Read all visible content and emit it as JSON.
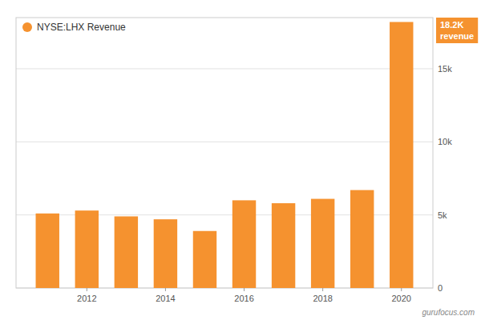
{
  "chart_data": {
    "type": "bar",
    "x": [
      2011,
      2012,
      2013,
      2014,
      2015,
      2016,
      2017,
      2018,
      2019,
      2020
    ],
    "xlim": [
      2010.2,
      2020.8
    ],
    "xticks": [
      2012,
      2014,
      2016,
      2018,
      2020
    ],
    "series": [
      {
        "name": "NYSE:LHX Revenue",
        "color": "#F5922F",
        "values": [
          5100,
          5300,
          4900,
          4700,
          3900,
          6000,
          5800,
          6100,
          6700,
          18200
        ]
      }
    ],
    "ylim": [
      0,
      18500
    ],
    "yticks": [
      0,
      {
        "value": 5000,
        "label": "5k"
      },
      {
        "value": 10000,
        "label": "10k"
      },
      {
        "value": 15000,
        "label": "15k"
      }
    ],
    "grid": true,
    "legend": "upper left",
    "annotations": [
      "18.2K",
      "revenue",
      "gurufocus.com"
    ]
  }
}
